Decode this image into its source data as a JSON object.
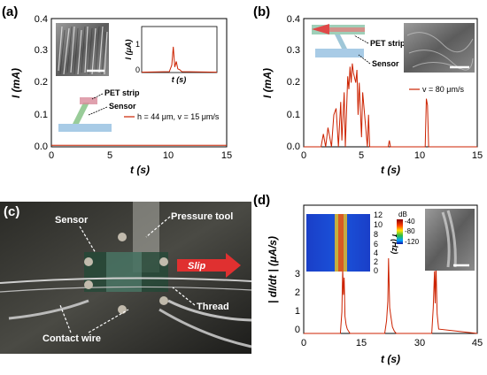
{
  "panels": {
    "a": {
      "letter": "(a)",
      "xlabel": "t (s)",
      "ylabel": "I (mA)",
      "xticks": [
        "0",
        "5",
        "10",
        "15"
      ],
      "yticks": [
        "0.0",
        "0.1",
        "0.2",
        "0.3",
        "0.4"
      ],
      "legend": "h = 44 μm, v = 15 μm/s",
      "inset_xlabel": "t (s)",
      "inset_ylabel": "I (μA)",
      "inset_yticks": [
        "0",
        "1"
      ],
      "diagram_labels": [
        "PET strip",
        "Sensor"
      ]
    },
    "b": {
      "letter": "(b)",
      "xlabel": "t (s)",
      "ylabel": "I (mA)",
      "xticks": [
        "0",
        "5",
        "10",
        "15"
      ],
      "yticks": [
        "0.0",
        "0.1",
        "0.2",
        "0.3",
        "0.4"
      ],
      "legend": "v = 80 μm/s",
      "diagram_labels": [
        "PET strip",
        "Sensor"
      ]
    },
    "c": {
      "letter": "(c)",
      "labels": {
        "sensor": "Sensor",
        "pressure_tool": "Pressure tool",
        "slip": "Slip",
        "thread": "Thread",
        "contact_wire": "Contact wire"
      }
    },
    "d": {
      "letter": "(d)",
      "xlabel": "t (s)",
      "ylabel": "| dI/dt | (μA/s)",
      "xticks": [
        "0",
        "15",
        "30",
        "45"
      ],
      "yticks": [
        "0",
        "1",
        "2",
        "3"
      ],
      "spectro_ylabel": "f (Hz)",
      "spectro_yticks": [
        "0",
        "2",
        "4",
        "6",
        "8",
        "10",
        "12"
      ],
      "colorbar_title": "dB",
      "colorbar_ticks": [
        "-40",
        "-80",
        "-120"
      ]
    }
  },
  "chart_data": [
    {
      "type": "line",
      "panel": "a",
      "xlabel": "t (s)",
      "ylabel": "I (mA)",
      "xlim": [
        0,
        15
      ],
      "ylim": [
        0,
        0.4
      ],
      "series": [
        {
          "name": "h = 44 μm, v = 15 μm/s",
          "color": "#cc2200",
          "x": [
            0,
            15
          ],
          "y": [
            0.005,
            0.005
          ]
        }
      ]
    },
    {
      "type": "line",
      "panel": "a-inset",
      "xlabel": "t (s)",
      "ylabel": "I (μA)",
      "xlim": [
        0,
        15
      ],
      "ylim": [
        0,
        2.5
      ],
      "series": [
        {
          "color": "#cc2200",
          "x": [
            0,
            5.5,
            6.0,
            6.3,
            6.6,
            6.9,
            7.2,
            7.6,
            8.0,
            15
          ],
          "y": [
            0.02,
            0.05,
            0.4,
            1.4,
            0.3,
            0.6,
            0.2,
            0.15,
            0.05,
            0.02
          ]
        }
      ]
    },
    {
      "type": "line",
      "panel": "b",
      "xlabel": "t (s)",
      "ylabel": "I (mA)",
      "xlim": [
        0,
        15
      ],
      "ylim": [
        0,
        0.4
      ],
      "series": [
        {
          "name": "v = 80 μm/s",
          "color": "#cc2200",
          "x": [
            0,
            1.5,
            1.7,
            1.9,
            2.1,
            2.4,
            2.6,
            2.8,
            3.0,
            3.2,
            3.3,
            3.5,
            3.6,
            3.8,
            3.9,
            4.0,
            4.1,
            4.2,
            4.3,
            4.5,
            4.6,
            4.7,
            4.8,
            5.0,
            5.1,
            5.5,
            5.6,
            5.7,
            7.3,
            7.4,
            7.5,
            10.5,
            10.6,
            10.7,
            10.8,
            15
          ],
          "y": [
            0,
            0,
            0.04,
            0,
            0.06,
            0,
            0.1,
            0.12,
            0,
            0.14,
            0.02,
            0.17,
            0,
            0.22,
            0.18,
            0.25,
            0.2,
            0.26,
            0.23,
            0.2,
            0.24,
            0.1,
            0.2,
            0.03,
            0.17,
            0,
            0.1,
            0,
            0,
            0.02,
            0,
            0,
            0.15,
            0.13,
            0,
            0
          ]
        }
      ]
    },
    {
      "type": "line",
      "panel": "d",
      "xlabel": "t (s)",
      "ylabel": "| dI/dt | (μA/s)",
      "xlim": [
        0,
        45
      ],
      "ylim": [
        0,
        3.5
      ],
      "series": [
        {
          "color": "#cc2200",
          "x": [
            0,
            9.5,
            9.9,
            10.1,
            10.3,
            10.5,
            10.7,
            11,
            11.3,
            12,
            21,
            21.5,
            21.8,
            22.0,
            22.3,
            22.6,
            23,
            23.5,
            24,
            33.2,
            33.6,
            33.9,
            34.1,
            34.3,
            34.6,
            35,
            45
          ],
          "y": [
            0,
            0,
            1.0,
            3.0,
            1.8,
            2.6,
            0.8,
            0.4,
            0.2,
            0,
            0,
            0.6,
            1.5,
            3.5,
            1.2,
            0.8,
            0.3,
            0.1,
            0,
            0,
            1.2,
            2.9,
            1.4,
            3.2,
            0.9,
            0.2,
            0
          ]
        }
      ]
    }
  ]
}
